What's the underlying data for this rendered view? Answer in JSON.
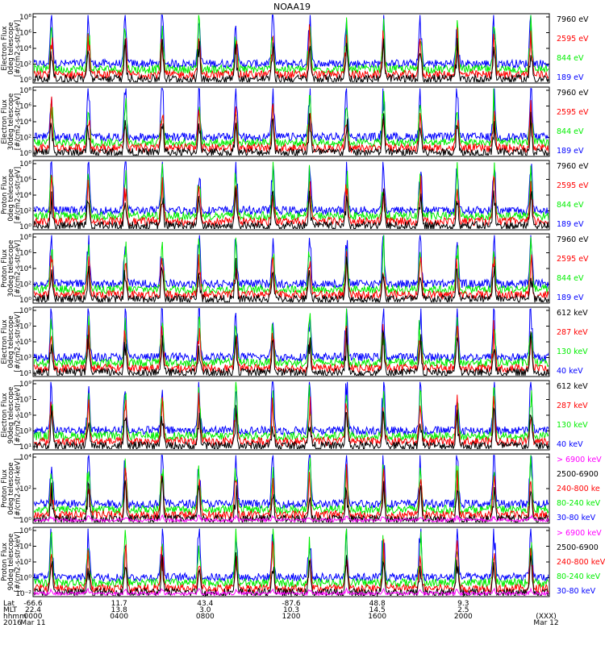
{
  "chart_data": {
    "type": "line",
    "title": "NOAA19",
    "colors": {
      "c0": "#0000ff",
      "c1": "#00ee00",
      "c2": "#ff0000",
      "c3": "#000000",
      "c4": "#ff00ff"
    },
    "panels": [
      {
        "ylabel": [
          "TED",
          "Electron Flux",
          "0deg telescope",
          "[#/cm2-s-str-eV]"
        ],
        "ticks": [
          "10⁸",
          "10⁶",
          "10⁴",
          "10²",
          "10⁰"
        ],
        "ylog": [
          0,
          8
        ],
        "legend": [
          {
            "text": "7960 eV",
            "color": "#000000"
          },
          {
            "text": "2595 eV",
            "color": "#ff0000"
          },
          {
            "text": "844 eV",
            "color": "#00ee00"
          },
          {
            "text": "189 eV",
            "color": "#0000ff"
          }
        ],
        "series": [
          {
            "name": "7960 eV",
            "color": "#000000"
          },
          {
            "name": "2595 eV",
            "color": "#ff0000"
          },
          {
            "name": "844 eV",
            "color": "#00ee00"
          },
          {
            "name": "189 eV",
            "color": "#0000ff"
          }
        ]
      },
      {
        "ylabel": [
          "TED",
          "Electron Flux",
          "30deg telescope",
          "[#/cm2-s-str-eV]"
        ],
        "ticks": [
          "10⁸",
          "10⁶",
          "10⁴",
          "10²",
          "10⁰"
        ],
        "ylog": [
          0,
          8
        ],
        "legend": [
          {
            "text": "7960 eV",
            "color": "#000000"
          },
          {
            "text": "2595 eV",
            "color": "#ff0000"
          },
          {
            "text": "844 eV",
            "color": "#00ee00"
          },
          {
            "text": "189 eV",
            "color": "#0000ff"
          }
        ],
        "series": [
          {
            "name": "7960 eV",
            "color": "#000000"
          },
          {
            "name": "2595 eV",
            "color": "#ff0000"
          },
          {
            "name": "844 eV",
            "color": "#00ee00"
          },
          {
            "name": "189 eV",
            "color": "#0000ff"
          }
        ]
      },
      {
        "ylabel": [
          "TED",
          "Proton Flux",
          "0deg telescope",
          "[#/cm2-s-str-eV]"
        ],
        "ticks": [
          "10⁸",
          "10⁶",
          "10⁴",
          "10²",
          "10⁰"
        ],
        "ylog": [
          0,
          8
        ],
        "legend": [
          {
            "text": "7960 eV",
            "color": "#000000"
          },
          {
            "text": "2595 eV",
            "color": "#ff0000"
          },
          {
            "text": "844 eV",
            "color": "#00ee00"
          },
          {
            "text": "189 eV",
            "color": "#0000ff"
          }
        ],
        "series": [
          {
            "name": "7960 eV",
            "color": "#000000"
          },
          {
            "name": "2595 eV",
            "color": "#ff0000"
          },
          {
            "name": "844 eV",
            "color": "#00ee00"
          },
          {
            "name": "189 eV",
            "color": "#0000ff"
          }
        ]
      },
      {
        "ylabel": [
          "TED",
          "Proton Flux",
          "30deg telescope",
          "[#/cm2-s-str-eV]"
        ],
        "ticks": [
          "10⁸",
          "10⁶",
          "10⁴",
          "10²",
          "10⁰"
        ],
        "ylog": [
          0,
          8
        ],
        "legend": [
          {
            "text": "7960 eV",
            "color": "#000000"
          },
          {
            "text": "2595 eV",
            "color": "#ff0000"
          },
          {
            "text": "844 eV",
            "color": "#00ee00"
          },
          {
            "text": "189 eV",
            "color": "#0000ff"
          }
        ],
        "series": [
          {
            "name": "7960 eV",
            "color": "#000000"
          },
          {
            "name": "2595 eV",
            "color": "#ff0000"
          },
          {
            "name": "844 eV",
            "color": "#00ee00"
          },
          {
            "name": "189 eV",
            "color": "#0000ff"
          }
        ]
      },
      {
        "ylabel": [
          "MEPED",
          "Electron Flux",
          "0deg telescope",
          "[#/cm2-s-str-keV]"
        ],
        "ticks": [
          "10⁹",
          "10⁷",
          "10⁵",
          "10³",
          "10¹"
        ],
        "ylog": [
          1,
          9
        ],
        "legend": [
          {
            "text": "612 keV",
            "color": "#000000"
          },
          {
            "text": "287 keV",
            "color": "#ff0000"
          },
          {
            "text": "130 keV",
            "color": "#00ee00"
          },
          {
            "text": "40 keV",
            "color": "#0000ff"
          }
        ],
        "series": [
          {
            "name": "612 keV",
            "color": "#000000"
          },
          {
            "name": "287 keV",
            "color": "#ff0000"
          },
          {
            "name": "130 keV",
            "color": "#00ee00"
          },
          {
            "name": "40 keV",
            "color": "#0000ff"
          }
        ]
      },
      {
        "ylabel": [
          "MEPED",
          "Electron Flux",
          "90deg telescope",
          "[#/cm2-s-str-keV]"
        ],
        "ticks": [
          "10⁹",
          "10⁷",
          "10⁵",
          "10³",
          "10¹"
        ],
        "ylog": [
          1,
          9
        ],
        "legend": [
          {
            "text": "612 keV",
            "color": "#000000"
          },
          {
            "text": "287 keV",
            "color": "#ff0000"
          },
          {
            "text": "130 keV",
            "color": "#00ee00"
          },
          {
            "text": "40 keV",
            "color": "#0000ff"
          }
        ],
        "series": [
          {
            "name": "612 keV",
            "color": "#000000"
          },
          {
            "name": "287 keV",
            "color": "#ff0000"
          },
          {
            "name": "130 keV",
            "color": "#00ee00"
          },
          {
            "name": "40 keV",
            "color": "#0000ff"
          }
        ]
      },
      {
        "ylabel": [
          "MEPED",
          "Proton Flux",
          "0deg telescope",
          "[#/cm2-s-str-keV]"
        ],
        "ticks": [
          "10⁴",
          "10²",
          "10⁰"
        ],
        "ylog": [
          -2,
          6
        ],
        "legend": [
          {
            "text": "> 6900 keV",
            "color": "#ff00ff"
          },
          {
            "text": "2500-6900",
            "color": "#000000"
          },
          {
            "text": "240-800 ke",
            "color": "#ff0000"
          },
          {
            "text": "80-240 keV",
            "color": "#00ee00"
          },
          {
            "text": "30-80 keV",
            "color": "#0000ff"
          }
        ],
        "series": [
          {
            "name": "> 6900 keV",
            "color": "#ff00ff"
          },
          {
            "name": "2500-6900",
            "color": "#000000"
          },
          {
            "name": "240-800 ke",
            "color": "#ff0000"
          },
          {
            "name": "80-240 keV",
            "color": "#00ee00"
          },
          {
            "name": "30-80 keV",
            "color": "#0000ff"
          }
        ]
      },
      {
        "ylabel": [
          "MEPED",
          "Proton Flux",
          "90deg telescope",
          "[#/cm2-s-str-keV]"
        ],
        "ticks": [
          "10⁶",
          "10⁴",
          "10²",
          "10⁰",
          "10⁻²"
        ],
        "ylog": [
          -2,
          6
        ],
        "legend": [
          {
            "text": "> 6900 keV",
            "color": "#ff00ff"
          },
          {
            "text": "2500-6900",
            "color": "#000000"
          },
          {
            "text": "240-800 keV",
            "color": "#ff0000"
          },
          {
            "text": "80-240 keV",
            "color": "#00ee00"
          },
          {
            "text": "30-80 keV",
            "color": "#0000ff"
          }
        ],
        "series": [
          {
            "name": "> 6900 keV",
            "color": "#ff00ff"
          },
          {
            "name": "2500-6900",
            "color": "#000000"
          },
          {
            "name": "240-800 keV",
            "color": "#ff0000"
          },
          {
            "name": "80-240 keV",
            "color": "#00ee00"
          },
          {
            "name": "30-80 keV",
            "color": "#0000ff"
          }
        ]
      }
    ],
    "xaxis": {
      "rows": [
        "Lat",
        "MLT",
        "hhmm",
        "2016"
      ],
      "ticks": [
        {
          "lat": "-66.6",
          "mlt": "22.4",
          "hhmm": "0000",
          "date": "Mar 11"
        },
        {
          "lat": "11.7",
          "mlt": "13.8",
          "hhmm": "0400",
          "date": ""
        },
        {
          "lat": "43.4",
          "mlt": "3.0",
          "hhmm": "0800",
          "date": ""
        },
        {
          "lat": "-87.6",
          "mlt": "10.3",
          "hhmm": "1200",
          "date": ""
        },
        {
          "lat": "48.8",
          "mlt": "14.5",
          "hhmm": "1600",
          "date": ""
        },
        {
          "lat": "9.3",
          "mlt": "2.5",
          "hhmm": "2000",
          "date": ""
        },
        {
          "lat": "",
          "mlt": "",
          "hhmm": "(XXX)",
          "date": "Mar 12"
        }
      ],
      "range_hours": [
        0,
        24
      ]
    }
  }
}
